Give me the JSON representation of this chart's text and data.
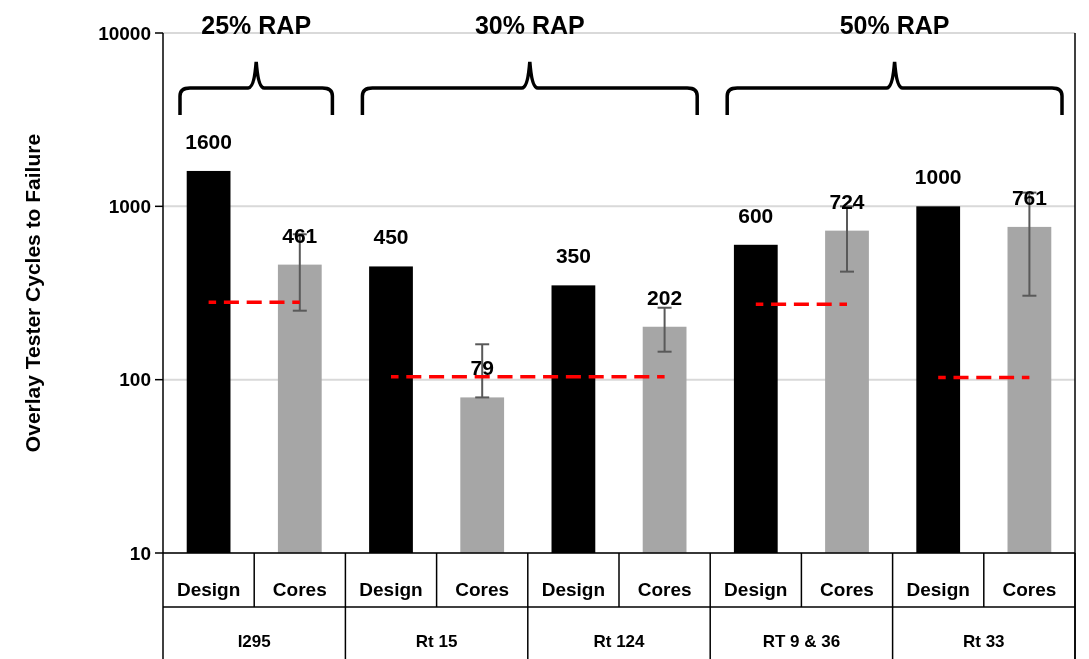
{
  "chart_data": {
    "type": "bar",
    "ylabel": "Overlay Tester Cycles to Failure",
    "log": true,
    "ylim": [
      10,
      10000
    ],
    "yticks": [
      10,
      100,
      1000,
      10000
    ],
    "grid": "y",
    "categories": [
      "Design",
      "Cores",
      "Design",
      "Cores",
      "Design",
      "Cores",
      "Design",
      "Cores",
      "Design",
      "Cores"
    ],
    "annotations": [
      "I295",
      "Rt 15",
      "Rt 124",
      "RT 9 & 36",
      "Rt 33",
      "25% RAP",
      "30% RAP",
      "50% RAP"
    ],
    "series": [
      {
        "values": [
          1600,
          461,
          450,
          79,
          350,
          202,
          600,
          724,
          1000,
          761
        ],
        "value_labels": [
          "1600",
          "461",
          "450",
          "79",
          "350",
          "202",
          "600",
          "724",
          "1000",
          "761"
        ],
        "colors": [
          "#000000",
          "#a6a6a6",
          "#000000",
          "#a6a6a6",
          "#000000",
          "#a6a6a6",
          "#000000",
          "#a6a6a6",
          "#000000",
          "#a6a6a6"
        ],
        "errors": [
          null,
          [
            250,
            690
          ],
          null,
          [
            79,
            160
          ],
          null,
          [
            145,
            260
          ],
          null,
          [
            420,
            1000
          ],
          null,
          [
            305,
            1200
          ]
        ]
      },
      {
        "type": "line",
        "color": "#ff0000",
        "line_style": "dashed",
        "marker": "none",
        "values": [
          280,
          280,
          null,
          null,
          null,
          null,
          null,
          null,
          null,
          null
        ]
      },
      {
        "type": "line",
        "color": "#ff0000",
        "line_style": "dashed",
        "marker": "none",
        "values": [
          null,
          null,
          104,
          104,
          104,
          104,
          null,
          null,
          null,
          null
        ]
      },
      {
        "type": "line",
        "color": "#ff0000",
        "line_style": "dashed",
        "marker": "none",
        "values": [
          null,
          null,
          null,
          null,
          null,
          null,
          272,
          272,
          null,
          null
        ]
      },
      {
        "type": "line",
        "color": "#ff0000",
        "line_style": "dashed",
        "marker": "none",
        "values": [
          null,
          null,
          null,
          null,
          null,
          null,
          null,
          null,
          103,
          103
        ]
      }
    ]
  }
}
